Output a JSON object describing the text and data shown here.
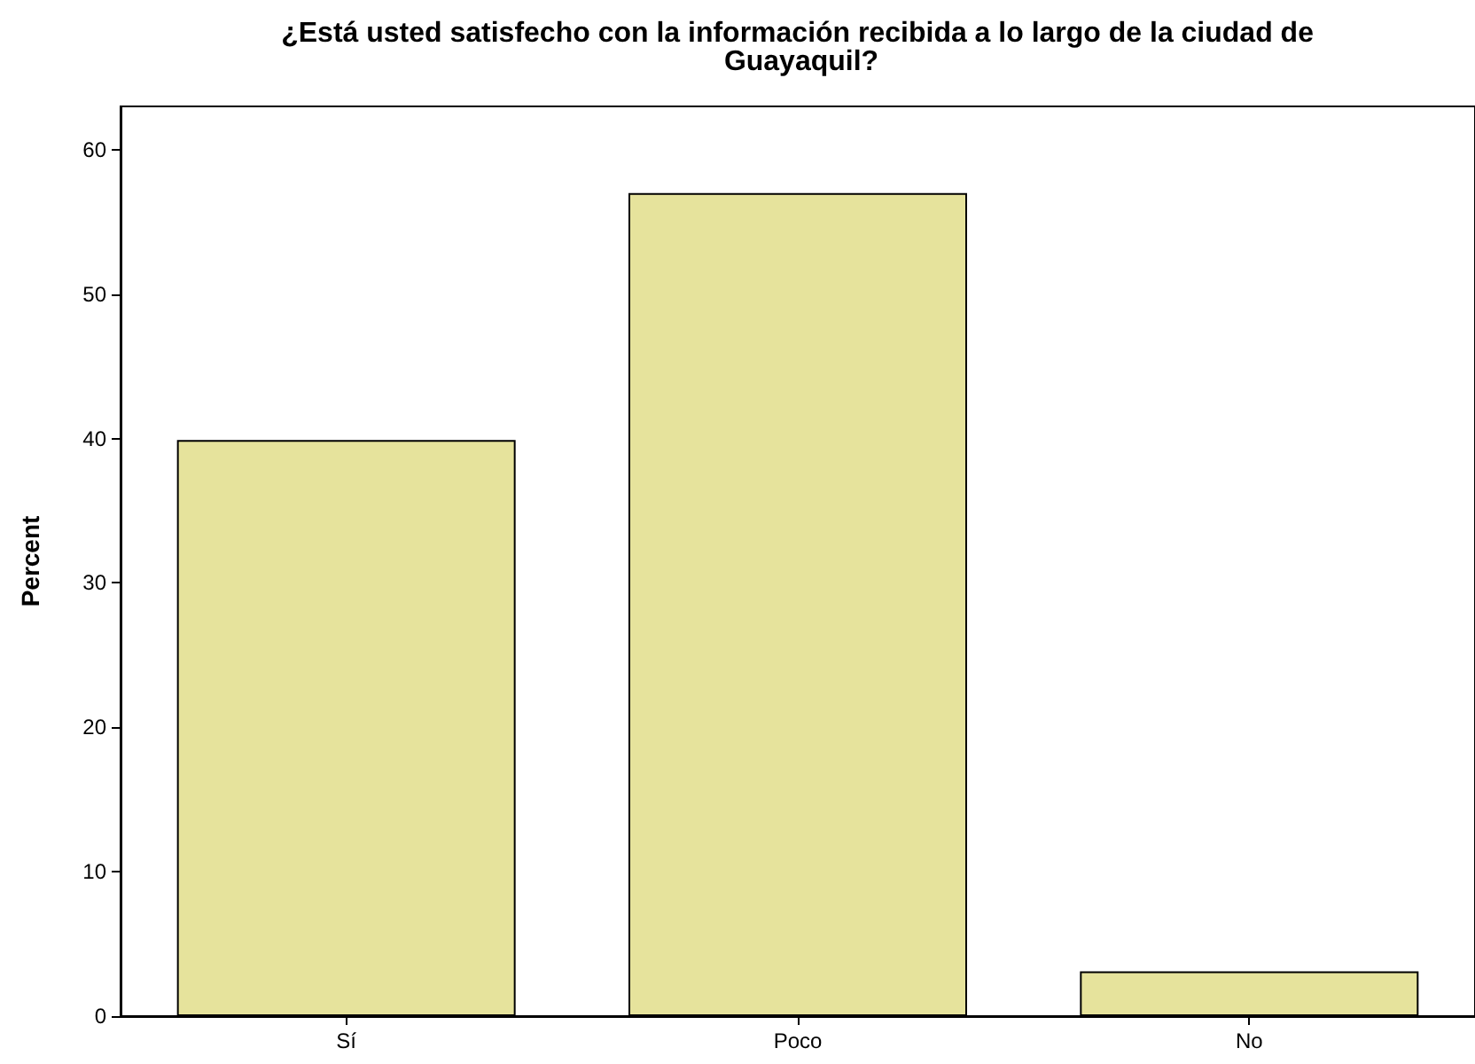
{
  "chart_data": {
    "type": "bar",
    "title": "¿Está usted satisfecho con la información recibida a lo largo de la ciudad de Guayaquil?",
    "ylabel": "Percent",
    "categories": [
      "Sí",
      "Poco",
      "No"
    ],
    "values": [
      39.9,
      57.0,
      3.1
    ],
    "color": "#e6e39c",
    "ylim": [
      0,
      63
    ],
    "yticks": [
      0,
      10,
      20,
      30,
      40,
      50,
      60
    ],
    "grid": false
  }
}
